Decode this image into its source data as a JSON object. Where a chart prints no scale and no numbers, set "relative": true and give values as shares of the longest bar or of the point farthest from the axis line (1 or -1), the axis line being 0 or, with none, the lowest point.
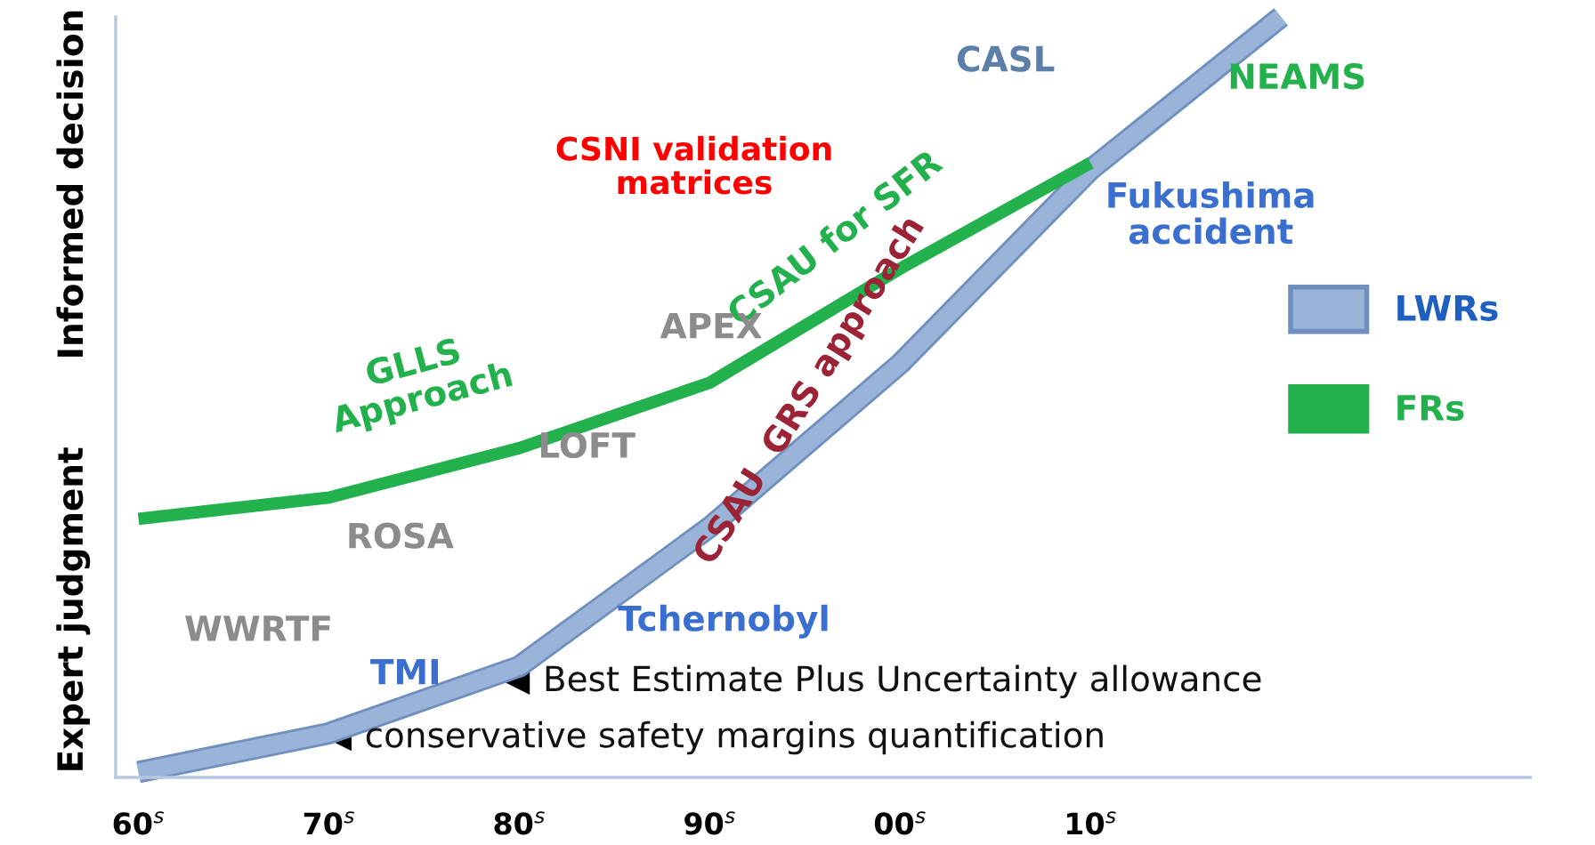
{
  "chart_data": {
    "type": "line",
    "relative": true,
    "categories": [
      "60$^{s}$",
      "70$^{s}$",
      "80$^{s}$",
      "90$^{s}$",
      "00$^{s}$",
      "10$^{s}$",
      null,
      null
    ],
    "series": [
      {
        "name": "LWRs",
        "color": "#9ab3d8",
        "values": [
          0.007,
          0.058,
          0.146,
          0.329,
          0.544,
          0.799,
          1.0,
          null
        ]
      },
      {
        "name": "FRs",
        "color": "#22b14c",
        "values": [
          0.34,
          0.368,
          0.433,
          0.519,
          0.669,
          0.808,
          null,
          null
        ]
      }
    ],
    "legend": "right",
    "annotations": [
      "Expert judgment",
      "Informed decision",
      "CSNI validation\nmatrices",
      "CASL",
      "NEAMS",
      "Fukushima\naccident",
      "CSAU for SFR",
      "CSAU  GRS approach",
      "APEX",
      "GLLS\nApproach",
      "LOFT",
      "ROSA",
      "WWRTF",
      "Tchernobyl",
      "TMI",
      "Best Estimate Plus Uncertainty allowance",
      "conservative safety margins quantification"
    ]
  }
}
